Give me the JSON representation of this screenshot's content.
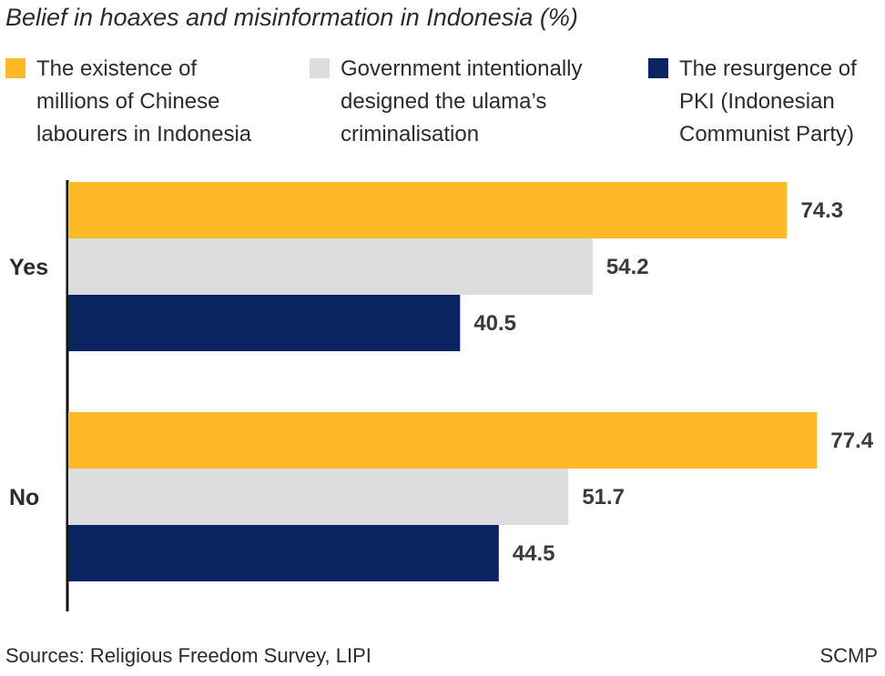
{
  "chart_data": {
    "type": "bar",
    "orientation": "horizontal",
    "title": "Belief in hoaxes and misinformation in Indonesia (%)",
    "categories": [
      "Yes",
      "No"
    ],
    "series": [
      {
        "name": "The existence of\nmillions of Chinese\nlabourers in Indonesia",
        "color": "#FDB926",
        "values": [
          74.3,
          77.4
        ]
      },
      {
        "name": "Government intentionally\ndesigned the ulama’s\ncriminalisation",
        "color": "#DCDCDE",
        "values": [
          54.2,
          51.7
        ]
      },
      {
        "name": "The resurgence of\nPKI (Indonesian\nCommunist Party)",
        "color": "#0A2461",
        "values": [
          40.5,
          44.5
        ]
      }
    ],
    "xlim": [
      0,
      80
    ],
    "grid": false,
    "legend_position": "top"
  },
  "footer": {
    "source": "Sources: Religious Freedom Survey, LIPI",
    "brand": "SCMP"
  }
}
